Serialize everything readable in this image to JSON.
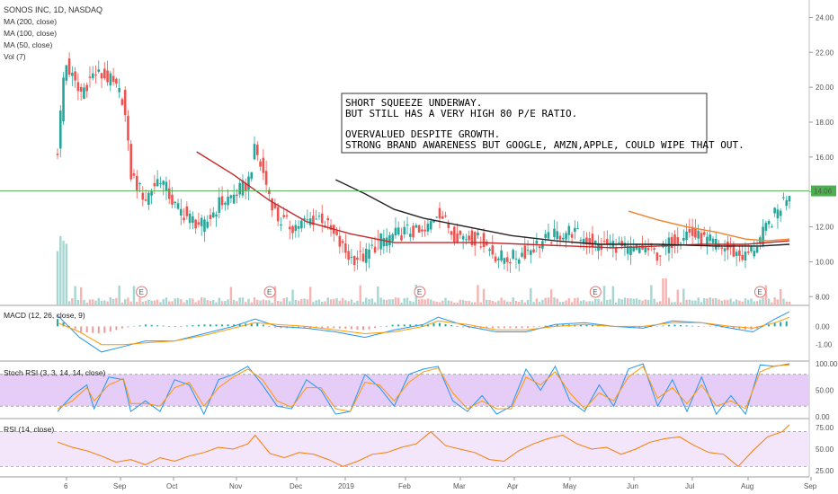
{
  "header": {
    "symbol_line": "SONOS INC, 1D, NASDAQ",
    "indicators": [
      "MA (200, close)",
      "MA (100, close)",
      "MA (50, close)",
      "Vol (7)"
    ]
  },
  "panels": {
    "macd_title": "MACD (12, 26, close, 9)",
    "stoch_title": "Stoch RSI (3, 3, 14, 14, close)",
    "rsi_title": "RSI (14, close)"
  },
  "note": {
    "lines": [
      "SHORT SQUEEZE UNDERWAY.",
      "BUT STILL HAS A VERY HIGH 80 P/E RATIO.",
      "",
      "OVERVALUED DESPITE GROWTH.",
      "STRONG BRAND AWARENESS BUT GOOGLE, AMZN,APPLE, COULD WIPE THAT OUT."
    ]
  },
  "colors": {
    "up": "#26a69a",
    "down": "#ef5350",
    "ma50": "#f0832b",
    "ma100": "#c62828",
    "ma200": "#222222",
    "macd_line": "#2196f3",
    "signal_line": "#ff9800",
    "stoch_k": "#2196f3",
    "stoch_d": "#ff9800",
    "rsi_line": "#f57c00",
    "band_stoch": "#e6cdf7",
    "band_rsi": "#f3e6fb",
    "last_price": "#4caf50"
  },
  "price_axis": {
    "ticks": [
      "24.00",
      "22.00",
      "20.00",
      "18.00",
      "16.00",
      "14.00",
      "12.00",
      "10.00",
      "8.00"
    ],
    "last_price_label": "14.06"
  },
  "macd_axis": {
    "ticks": [
      "0.00",
      "-1.00"
    ]
  },
  "stoch_axis": {
    "ticks": [
      "100.00",
      "50.00",
      "0.00"
    ]
  },
  "rsi_axis": {
    "ticks": [
      "75.00",
      "50.00",
      "25.00"
    ]
  },
  "time_axis": {
    "labels": [
      "6",
      "Sep",
      "Oct",
      "Nov",
      "Dec",
      "2019",
      "Feb",
      "Mar",
      "Apr",
      "May",
      "Jun",
      "Jul",
      "Aug",
      "Sep"
    ]
  },
  "earnings_marker": "E",
  "chart_data": {
    "type": "candlestick",
    "price_range": [
      7.5,
      25.0
    ],
    "last_price": 14.06,
    "earnings_dates": [
      "Sep",
      "Nov",
      "Feb",
      "May",
      "Aug"
    ],
    "price_path": [
      [
        0.0,
        16.4
      ],
      [
        0.01,
        21.5
      ],
      [
        0.03,
        19.6
      ],
      [
        0.05,
        20.8
      ],
      [
        0.07,
        20.5
      ],
      [
        0.09,
        19.3
      ],
      [
        0.1,
        15.0
      ],
      [
        0.12,
        13.6
      ],
      [
        0.14,
        14.9
      ],
      [
        0.16,
        13.2
      ],
      [
        0.18,
        12.5
      ],
      [
        0.2,
        12.0
      ],
      [
        0.22,
        13.3
      ],
      [
        0.24,
        13.8
      ],
      [
        0.26,
        14.5
      ],
      [
        0.27,
        16.5
      ],
      [
        0.29,
        13.8
      ],
      [
        0.3,
        12.5
      ],
      [
        0.32,
        12.0
      ],
      [
        0.34,
        12.3
      ],
      [
        0.36,
        12.6
      ],
      [
        0.38,
        11.3
      ],
      [
        0.4,
        10.2
      ],
      [
        0.42,
        10.3
      ],
      [
        0.44,
        11.2
      ],
      [
        0.46,
        11.5
      ],
      [
        0.48,
        11.8
      ],
      [
        0.5,
        11.5
      ],
      [
        0.52,
        13.0
      ],
      [
        0.54,
        11.6
      ],
      [
        0.56,
        11.4
      ],
      [
        0.58,
        11.2
      ],
      [
        0.6,
        10.3
      ],
      [
        0.62,
        10.2
      ],
      [
        0.64,
        10.6
      ],
      [
        0.66,
        11.1
      ],
      [
        0.68,
        11.5
      ],
      [
        0.7,
        11.8
      ],
      [
        0.72,
        11.3
      ],
      [
        0.74,
        10.9
      ],
      [
        0.76,
        11.0
      ],
      [
        0.78,
        10.6
      ],
      [
        0.8,
        10.8
      ],
      [
        0.82,
        10.4
      ],
      [
        0.84,
        11.2
      ],
      [
        0.86,
        11.7
      ],
      [
        0.88,
        11.3
      ],
      [
        0.9,
        11.0
      ],
      [
        0.92,
        10.6
      ],
      [
        0.94,
        10.3
      ],
      [
        0.955,
        11.0
      ],
      [
        0.97,
        12.0
      ],
      [
        0.985,
        13.0
      ],
      [
        1.0,
        14.06
      ]
    ],
    "ma50": [
      [
        0.78,
        12.9
      ],
      [
        0.82,
        12.4
      ],
      [
        0.86,
        12.0
      ],
      [
        0.9,
        11.7
      ],
      [
        0.94,
        11.3
      ],
      [
        0.97,
        11.2
      ],
      [
        1.0,
        11.3
      ]
    ],
    "ma100": [
      [
        0.19,
        16.3
      ],
      [
        0.24,
        15.0
      ],
      [
        0.29,
        13.5
      ],
      [
        0.34,
        12.3
      ],
      [
        0.4,
        11.6
      ],
      [
        0.46,
        11.1
      ],
      [
        0.52,
        11.1
      ],
      [
        0.58,
        11.1
      ],
      [
        0.64,
        11.0
      ],
      [
        0.7,
        10.9
      ],
      [
        0.76,
        10.8
      ],
      [
        0.82,
        10.9
      ],
      [
        0.88,
        11.0
      ],
      [
        0.94,
        11.0
      ],
      [
        1.0,
        11.2
      ]
    ],
    "ma200": [
      [
        0.38,
        14.7
      ],
      [
        0.42,
        13.9
      ],
      [
        0.46,
        13.0
      ],
      [
        0.5,
        12.5
      ],
      [
        0.56,
        12.0
      ],
      [
        0.62,
        11.5
      ],
      [
        0.68,
        11.2
      ],
      [
        0.74,
        11.0
      ],
      [
        0.82,
        11.0
      ],
      [
        0.9,
        10.9
      ],
      [
        0.96,
        10.9
      ],
      [
        1.0,
        11.0
      ]
    ],
    "macd": {
      "range": [
        -1.8,
        1.0
      ],
      "macd_line": [
        [
          0.0,
          0.6
        ],
        [
          0.03,
          -0.6
        ],
        [
          0.06,
          -1.4
        ],
        [
          0.09,
          -1.1
        ],
        [
          0.12,
          -0.8
        ],
        [
          0.16,
          -0.8
        ],
        [
          0.2,
          -0.4
        ],
        [
          0.24,
          0.0
        ],
        [
          0.27,
          0.4
        ],
        [
          0.3,
          0.0
        ],
        [
          0.34,
          -0.1
        ],
        [
          0.38,
          -0.3
        ],
        [
          0.42,
          -0.6
        ],
        [
          0.46,
          -0.2
        ],
        [
          0.5,
          0.1
        ],
        [
          0.52,
          0.5
        ],
        [
          0.56,
          0.0
        ],
        [
          0.6,
          -0.3
        ],
        [
          0.64,
          -0.3
        ],
        [
          0.68,
          0.1
        ],
        [
          0.72,
          0.2
        ],
        [
          0.76,
          0.0
        ],
        [
          0.8,
          -0.1
        ],
        [
          0.84,
          0.3
        ],
        [
          0.88,
          0.2
        ],
        [
          0.92,
          -0.1
        ],
        [
          0.95,
          -0.3
        ],
        [
          0.98,
          0.4
        ],
        [
          1.0,
          0.8
        ]
      ],
      "signal_line": [
        [
          0.0,
          0.2
        ],
        [
          0.03,
          -0.3
        ],
        [
          0.06,
          -1.0
        ],
        [
          0.09,
          -1.0
        ],
        [
          0.12,
          -0.9
        ],
        [
          0.16,
          -0.8
        ],
        [
          0.2,
          -0.5
        ],
        [
          0.24,
          -0.1
        ],
        [
          0.27,
          0.2
        ],
        [
          0.3,
          0.1
        ],
        [
          0.34,
          0.0
        ],
        [
          0.38,
          -0.2
        ],
        [
          0.42,
          -0.4
        ],
        [
          0.46,
          -0.3
        ],
        [
          0.5,
          0.0
        ],
        [
          0.52,
          0.3
        ],
        [
          0.56,
          0.1
        ],
        [
          0.6,
          -0.2
        ],
        [
          0.64,
          -0.2
        ],
        [
          0.68,
          0.0
        ],
        [
          0.72,
          0.1
        ],
        [
          0.76,
          0.0
        ],
        [
          0.8,
          0.0
        ],
        [
          0.84,
          0.2
        ],
        [
          0.88,
          0.2
        ],
        [
          0.92,
          0.0
        ],
        [
          0.95,
          -0.1
        ],
        [
          0.98,
          0.2
        ],
        [
          1.0,
          0.5
        ]
      ]
    },
    "stoch_rsi": {
      "range": [
        0,
        100
      ],
      "k": [
        [
          0.0,
          10
        ],
        [
          0.02,
          40
        ],
        [
          0.04,
          60
        ],
        [
          0.05,
          15
        ],
        [
          0.07,
          75
        ],
        [
          0.09,
          70
        ],
        [
          0.1,
          10
        ],
        [
          0.12,
          30
        ],
        [
          0.14,
          10
        ],
        [
          0.16,
          70
        ],
        [
          0.18,
          60
        ],
        [
          0.2,
          5
        ],
        [
          0.22,
          70
        ],
        [
          0.24,
          80
        ],
        [
          0.26,
          95
        ],
        [
          0.28,
          60
        ],
        [
          0.3,
          20
        ],
        [
          0.32,
          15
        ],
        [
          0.34,
          70
        ],
        [
          0.36,
          50
        ],
        [
          0.38,
          5
        ],
        [
          0.4,
          10
        ],
        [
          0.42,
          80
        ],
        [
          0.44,
          55
        ],
        [
          0.46,
          20
        ],
        [
          0.48,
          80
        ],
        [
          0.5,
          90
        ],
        [
          0.52,
          95
        ],
        [
          0.54,
          30
        ],
        [
          0.56,
          10
        ],
        [
          0.58,
          40
        ],
        [
          0.6,
          5
        ],
        [
          0.62,
          20
        ],
        [
          0.64,
          90
        ],
        [
          0.66,
          50
        ],
        [
          0.68,
          95
        ],
        [
          0.7,
          30
        ],
        [
          0.72,
          10
        ],
        [
          0.74,
          60
        ],
        [
          0.76,
          20
        ],
        [
          0.78,
          90
        ],
        [
          0.8,
          100
        ],
        [
          0.82,
          20
        ],
        [
          0.84,
          70
        ],
        [
          0.86,
          10
        ],
        [
          0.88,
          75
        ],
        [
          0.9,
          5
        ],
        [
          0.92,
          40
        ],
        [
          0.94,
          5
        ],
        [
          0.96,
          98
        ],
        [
          0.98,
          95
        ],
        [
          1.0,
          100
        ]
      ],
      "d": [
        [
          0.0,
          15
        ],
        [
          0.02,
          30
        ],
        [
          0.04,
          55
        ],
        [
          0.05,
          30
        ],
        [
          0.07,
          60
        ],
        [
          0.09,
          72
        ],
        [
          0.1,
          25
        ],
        [
          0.12,
          25
        ],
        [
          0.14,
          20
        ],
        [
          0.16,
          55
        ],
        [
          0.18,
          65
        ],
        [
          0.2,
          20
        ],
        [
          0.22,
          55
        ],
        [
          0.24,
          75
        ],
        [
          0.26,
          90
        ],
        [
          0.28,
          70
        ],
        [
          0.3,
          30
        ],
        [
          0.32,
          18
        ],
        [
          0.34,
          55
        ],
        [
          0.36,
          55
        ],
        [
          0.38,
          15
        ],
        [
          0.4,
          10
        ],
        [
          0.42,
          65
        ],
        [
          0.44,
          60
        ],
        [
          0.46,
          30
        ],
        [
          0.48,
          65
        ],
        [
          0.5,
          85
        ],
        [
          0.52,
          92
        ],
        [
          0.54,
          45
        ],
        [
          0.56,
          15
        ],
        [
          0.58,
          30
        ],
        [
          0.6,
          15
        ],
        [
          0.62,
          15
        ],
        [
          0.64,
          75
        ],
        [
          0.66,
          60
        ],
        [
          0.68,
          85
        ],
        [
          0.7,
          45
        ],
        [
          0.72,
          15
        ],
        [
          0.74,
          45
        ],
        [
          0.76,
          30
        ],
        [
          0.78,
          75
        ],
        [
          0.8,
          95
        ],
        [
          0.82,
          35
        ],
        [
          0.84,
          55
        ],
        [
          0.86,
          25
        ],
        [
          0.88,
          60
        ],
        [
          0.9,
          20
        ],
        [
          0.92,
          30
        ],
        [
          0.94,
          15
        ],
        [
          0.96,
          85
        ],
        [
          0.98,
          96
        ],
        [
          1.0,
          98
        ]
      ]
    },
    "rsi": {
      "range": [
        20,
        82
      ],
      "bands": [
        30,
        70
      ],
      "values": [
        [
          0.0,
          58
        ],
        [
          0.02,
          52
        ],
        [
          0.04,
          48
        ],
        [
          0.06,
          42
        ],
        [
          0.08,
          35
        ],
        [
          0.1,
          38
        ],
        [
          0.12,
          32
        ],
        [
          0.14,
          40
        ],
        [
          0.16,
          36
        ],
        [
          0.18,
          42
        ],
        [
          0.2,
          46
        ],
        [
          0.22,
          52
        ],
        [
          0.24,
          50
        ],
        [
          0.26,
          56
        ],
        [
          0.27,
          66
        ],
        [
          0.29,
          45
        ],
        [
          0.31,
          40
        ],
        [
          0.33,
          46
        ],
        [
          0.35,
          44
        ],
        [
          0.37,
          38
        ],
        [
          0.39,
          30
        ],
        [
          0.41,
          36
        ],
        [
          0.43,
          44
        ],
        [
          0.45,
          46
        ],
        [
          0.47,
          52
        ],
        [
          0.49,
          56
        ],
        [
          0.51,
          70
        ],
        [
          0.53,
          54
        ],
        [
          0.55,
          50
        ],
        [
          0.57,
          46
        ],
        [
          0.59,
          38
        ],
        [
          0.61,
          36
        ],
        [
          0.63,
          48
        ],
        [
          0.65,
          56
        ],
        [
          0.67,
          62
        ],
        [
          0.69,
          66
        ],
        [
          0.71,
          56
        ],
        [
          0.73,
          50
        ],
        [
          0.75,
          52
        ],
        [
          0.77,
          44
        ],
        [
          0.79,
          50
        ],
        [
          0.81,
          58
        ],
        [
          0.83,
          62
        ],
        [
          0.85,
          64
        ],
        [
          0.87,
          54
        ],
        [
          0.89,
          46
        ],
        [
          0.91,
          44
        ],
        [
          0.93,
          30
        ],
        [
          0.95,
          48
        ],
        [
          0.97,
          64
        ],
        [
          0.99,
          70
        ],
        [
          1.0,
          78
        ]
      ]
    }
  }
}
